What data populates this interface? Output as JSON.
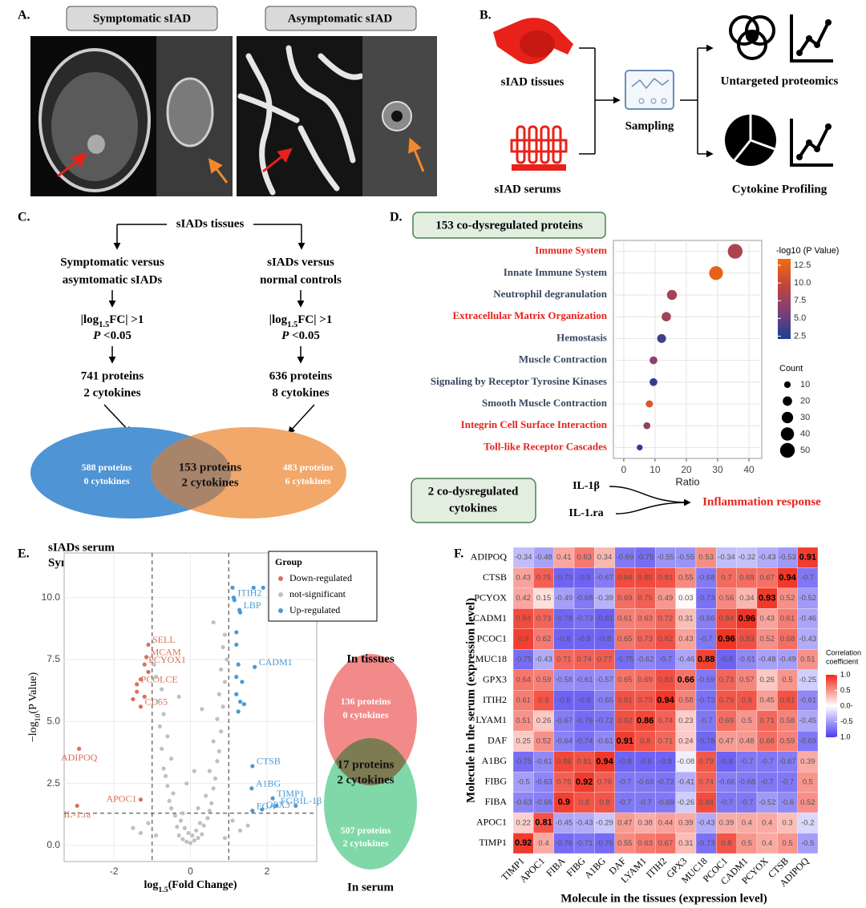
{
  "panel_labels": [
    "A.",
    "B.",
    "C.",
    "D.",
    "E.",
    "F."
  ],
  "panel_a": {
    "titles": [
      "Symptomatic sIAD",
      "Asymptomatic sIAD"
    ]
  },
  "panel_b": {
    "inputs": [
      "sIAD tissues",
      "sIAD serums"
    ],
    "process": "Sampling",
    "outputs": [
      "Untargeted proteomics",
      "Cytokine Profiling"
    ]
  },
  "panel_c": {
    "root": "sIADs tissues",
    "branches": [
      {
        "title": [
          "Symptomatic versus",
          "asymtomatic sIADs"
        ],
        "fc": [
          "|log",
          "1.5",
          "FC| >1"
        ],
        "p": [
          "P",
          " <0.05"
        ],
        "result": [
          "741 proteins",
          "2 cytokines"
        ]
      },
      {
        "title": [
          "sIADs versus",
          "normal controls"
        ],
        "fc": [
          "|log",
          "1.5",
          "FC| >1"
        ],
        "p": [
          "P",
          " <0.05"
        ],
        "result": [
          "636 proteins",
          "8 cytokines"
        ]
      }
    ],
    "venn": {
      "left": [
        "588 proteins",
        "0 cytokines"
      ],
      "center": [
        "153 proteins",
        "2 cytokines"
      ],
      "right": [
        "483 proteins",
        "6 cytokines"
      ]
    }
  },
  "panel_d": {
    "header": "153 co-dysregulated proteins",
    "cytokine_box": [
      "2 co-dysregulated",
      "cytokines"
    ],
    "cytokines": [
      "IL-1β",
      "IL-1.ra"
    ],
    "outcome": "Inflammation response"
  },
  "panel_e": {
    "title": [
      "sIADs serum",
      "Symptomatic vs. asymptomatic"
    ],
    "venn": {
      "top_label": "In tissues",
      "top": [
        "136 proteins",
        "0 cytokines"
      ],
      "center": [
        "17 proteins",
        "2 cytokines"
      ],
      "bottom": [
        "507 proteins",
        "2 cytokines"
      ],
      "bottom_label": "In serum"
    }
  },
  "chart_data": [
    {
      "type": "dot",
      "categories": [
        "Immune System",
        "Innate Immune System",
        "Neutrophil degranulation",
        "Extracellular Matrix Organization",
        "Hemostasis",
        "Muscle Contraction",
        "Signaling by Receptor Tyrosine Kinases",
        "Smooth Muscle Contraction",
        "Integrin Cell Surface Interaction",
        "Toll-like Receptor Cascades"
      ],
      "label_colors": [
        "#e8221b",
        "#3a4660",
        "#3a4660",
        "#e8221b",
        "#3a4660",
        "#3a4660",
        "#3a4660",
        "#3a4660",
        "#e8221b",
        "#e8221b"
      ],
      "values": [
        35.6,
        29.5,
        15.4,
        13.6,
        12.1,
        9.5,
        9.5,
        8.2,
        7.4,
        5.1
      ],
      "color_values": [
        8.5,
        12.5,
        8,
        7.8,
        3.5,
        6.8,
        3,
        11.5,
        7,
        2.8
      ],
      "sizes": [
        50,
        44,
        23,
        20,
        18,
        14,
        14,
        12,
        11,
        8
      ],
      "xlabel": "Ratio",
      "xlim": [
        -3.3,
        44.1
      ],
      "xticks": [
        0,
        10,
        20,
        30,
        40
      ],
      "grid": true,
      "color_legend": {
        "title": "-log10 (P Value)",
        "lim": [
          2.1,
          13.4
        ],
        "ticks": [
          2.5,
          {
            "value": 5,
            "label": "5.0"
          },
          7.5,
          {
            "value": 10,
            "label": "10.0"
          },
          12.5
        ],
        "colors": [
          "#1c3f94",
          "#7a3f7a",
          "#c0463c",
          "#f26b0f"
        ]
      },
      "size_legend": {
        "title": "Count",
        "values": [
          10,
          20,
          30,
          40,
          50
        ]
      }
    },
    {
      "type": "scatter",
      "series": [
        {
          "name": "Down-regulated",
          "color": "#d9705a",
          "x": [
            -2.91,
            -2.96,
            -1.3,
            -1.1,
            -1.15,
            -1.2,
            -1.4,
            -1.3,
            -1.4,
            -1.5,
            -1.3,
            -1.1,
            -1.2
          ],
          "values": [
            3.9,
            1.6,
            1.85,
            8.1,
            7.6,
            7.3,
            6.5,
            5.6,
            6.2,
            5.9,
            6.7,
            7.0,
            6.0
          ],
          "labels": [
            "ADIPOQ",
            "IL-1.ra",
            "APOC1",
            "SELL",
            "MCAM",
            "PCYOX1",
            "PCOLCE",
            "CD55",
            null,
            null,
            null,
            null,
            null
          ]
        },
        {
          "name": "not-significant",
          "color": "#c0c0c0",
          "x": [
            0,
            0.1,
            -0.1,
            0.2,
            -0.2,
            0.05,
            -0.05,
            0.3,
            -0.3,
            0.15,
            -0.15,
            0.35,
            -0.35,
            0.25,
            -0.25,
            0.45,
            -0.4,
            0.5,
            -0.5,
            0.55,
            -0.55,
            0.4,
            -0.45,
            0.6,
            -0.6,
            0.65,
            -0.65,
            0.5,
            -0.7,
            0.7,
            -0.5,
            0.75,
            -0.75,
            0.6,
            -0.6,
            0.8,
            -0.8,
            0.7,
            -0.7,
            0.85,
            -0.85,
            0.75,
            -0.75,
            0.9,
            -0.9,
            0.8,
            0.95,
            -0.95,
            0.85,
            0.9,
            0.6,
            -0.3,
            0.3,
            0.1,
            -0.1,
            0.2,
            -0.2,
            1.1,
            -1.1,
            1.3,
            -1.3,
            0.9,
            -0.9,
            1.5,
            -1.5
          ],
          "values": [
            0.1,
            0.2,
            0.15,
            0.3,
            0.25,
            0.4,
            0.5,
            0.45,
            0.4,
            0.6,
            0.7,
            0.8,
            0.75,
            0.9,
            1.0,
            1.1,
            1.2,
            1.4,
            1.5,
            1.7,
            1.8,
            2.0,
            2.1,
            2.3,
            2.4,
            2.7,
            2.8,
            3.0,
            3.1,
            3.4,
            3.5,
            3.8,
            3.9,
            4.2,
            4.4,
            4.6,
            4.8,
            5.1,
            5.3,
            5.6,
            5.8,
            6.1,
            6.3,
            6.6,
            6.8,
            7.1,
            7.5,
            7.3,
            8.0,
            8.5,
            9.0,
            6.0,
            5.5,
            3.0,
            2.5,
            1.5,
            1.3,
            1.0,
            0.9,
            0.6,
            0.5,
            0.3,
            0.4,
            0.8,
            0.7
          ],
          "labels": null
        },
        {
          "name": "Up-regulated",
          "color": "#4a9ad6",
          "x": [
            1.13,
            1.28,
            1.68,
            1.62,
            1.6,
            2.15,
            2.25,
            1.87,
            1.62,
            2.75,
            1.15,
            1.3,
            1.2,
            1.2,
            1.25,
            1.2,
            1.35,
            1.2,
            1.3,
            1.4,
            1.25,
            1.1,
            1.65,
            1.9
          ],
          "values": [
            10.0,
            9.5,
            7.2,
            3.2,
            2.3,
            1.9,
            1.6,
            1.45,
            1.4,
            1.6,
            9.9,
            9.4,
            8.6,
            8.1,
            7.3,
            6.8,
            6.6,
            6.1,
            5.8,
            5.7,
            5.4,
            10.4,
            10.4,
            10.4
          ],
          "labels": [
            "ITIH2",
            "LBP",
            "CADM1",
            "CTSB",
            "A1BG",
            "TIMP1",
            "FGB",
            "GPX3",
            "FGA",
            "IL-1β",
            null,
            null,
            null,
            null,
            null,
            null,
            null,
            null,
            null,
            null,
            null,
            null,
            null,
            null
          ]
        }
      ],
      "xlabel": [
        "log",
        "1.5",
        "(Fold Change)"
      ],
      "ylabel": [
        "−log",
        "10",
        "(P Value)"
      ],
      "xlim": [
        -3.3,
        3.3
      ],
      "ylim": [
        -0.65,
        11.8
      ],
      "xticks": [
        -2,
        0,
        2
      ],
      "yticks": [
        {
          "value": 0,
          "label": "0.0"
        },
        2.5,
        {
          "value": 5,
          "label": "5.0"
        },
        7.5,
        {
          "value": 10,
          "label": "10.0"
        }
      ],
      "vlines": [
        -1,
        1
      ],
      "hline": 1.3,
      "grid": true,
      "legend_title": "Group",
      "legend_position": "top-right"
    },
    {
      "type": "heatmap",
      "x_categories": [
        "TIMP1",
        "APOC1",
        "FIBA",
        "FIBG",
        "A1BG",
        "DAF",
        "LYAM1",
        "ITIH2",
        "GPX3",
        "MUC18",
        "PCOC1",
        "CADM1",
        "PCYOX",
        "CTSB",
        "ADIPOQ"
      ],
      "y_categories": [
        "ADIPOQ",
        "CTSB",
        "PCYOX",
        "CADM1",
        "PCOC1",
        "MUC18",
        "GPX3",
        "ITIH2",
        "LYAM1",
        "DAF",
        "A1BG",
        "FIBG",
        "FIBA",
        "APOC1",
        "TIMP1"
      ],
      "values": [
        [
          -0.34,
          -0.48,
          0.41,
          0.63,
          0.34,
          -0.69,
          -0.75,
          -0.55,
          -0.55,
          0.53,
          -0.34,
          -0.32,
          -0.43,
          -0.53,
          0.91
        ],
        [
          0.43,
          0.75,
          -0.79,
          -0.8,
          -0.67,
          0.84,
          0.85,
          0.81,
          0.55,
          -0.68,
          0.7,
          0.69,
          0.67,
          0.94,
          -0.7
        ],
        [
          0.42,
          0.15,
          -0.49,
          -0.68,
          -0.39,
          0.69,
          0.75,
          0.49,
          0.03,
          -0.73,
          0.56,
          0.34,
          0.93,
          0.52,
          -0.52
        ],
        [
          0.84,
          0.73,
          -0.78,
          -0.73,
          -0.81,
          0.61,
          0.63,
          0.72,
          0.31,
          -0.66,
          0.84,
          0.96,
          0.43,
          0.61,
          -0.46
        ],
        [
          0.9,
          0.62,
          -0.8,
          -0.8,
          -0.8,
          0.65,
          0.73,
          0.82,
          0.43,
          -0.7,
          0.96,
          0.83,
          0.52,
          0.68,
          -0.43
        ],
        [
          -0.75,
          -0.43,
          0.71,
          0.74,
          0.77,
          -0.75,
          -0.62,
          -0.7,
          -0.46,
          0.88,
          -0.8,
          -0.61,
          -0.48,
          -0.49,
          0.51
        ],
        [
          0.64,
          0.59,
          -0.58,
          -0.61,
          -0.57,
          0.65,
          0.69,
          0.83,
          0.66,
          -0.69,
          0.73,
          0.57,
          0.26,
          0.5,
          -0.25
        ],
        [
          0.61,
          0.8,
          -0.8,
          -0.8,
          -0.65,
          0.81,
          0.79,
          0.94,
          0.58,
          -0.73,
          0.79,
          0.8,
          0.45,
          0.81,
          -0.61
        ],
        [
          0.51,
          0.26,
          -0.67,
          -0.76,
          -0.72,
          0.82,
          0.86,
          0.74,
          0.23,
          -0.7,
          0.69,
          0.5,
          0.71,
          0.58,
          -0.45
        ],
        [
          0.25,
          0.52,
          -0.64,
          -0.74,
          -0.61,
          0.91,
          0.8,
          0.71,
          0.24,
          -0.78,
          0.47,
          0.48,
          0.68,
          0.59,
          -0.69
        ],
        [
          -0.75,
          -0.61,
          0.86,
          0.81,
          0.94,
          -0.8,
          -0.8,
          -0.8,
          -0.08,
          0.79,
          -0.8,
          -0.7,
          -0.7,
          -0.67,
          0.39
        ],
        [
          -0.5,
          -0.63,
          0.75,
          0.92,
          0.76,
          -0.7,
          -0.69,
          -0.72,
          -0.41,
          0.74,
          -0.66,
          -0.68,
          -0.7,
          -0.7,
          0.5
        ],
        [
          -0.63,
          -0.66,
          0.9,
          0.8,
          0.8,
          -0.7,
          -0.7,
          -0.69,
          -0.26,
          0.84,
          -0.7,
          -0.7,
          -0.52,
          -0.6,
          0.52
        ],
        [
          0.22,
          0.81,
          -0.45,
          -0.43,
          -0.29,
          0.47,
          0.38,
          0.44,
          0.39,
          -0.43,
          0.39,
          0.4,
          0.4,
          0.3,
          -0.2
        ],
        [
          0.92,
          0.4,
          -0.76,
          -0.71,
          -0.76,
          0.55,
          0.63,
          0.67,
          0.31,
          -0.73,
          0.8,
          0.5,
          0.4,
          0.5,
          -0.5
        ]
      ],
      "xlabel": "Molecule in the tissues (expression level)",
      "ylabel": "Molecule in the serum (expression level)",
      "colors": [
        "#4a3cf0",
        "#ffffff",
        "#f02a1a"
      ],
      "colorbar": {
        "title": [
          "Correlation",
          "coefficient"
        ],
        "lim": [
          -1,
          1
        ],
        "ticks": [
          {
            "value": 1,
            "label": "1.0"
          },
          0.5,
          {
            "value": 0,
            "label": "0.0-"
          },
          -0.5,
          {
            "value": -1,
            "label": "1.0"
          }
        ]
      }
    }
  ]
}
